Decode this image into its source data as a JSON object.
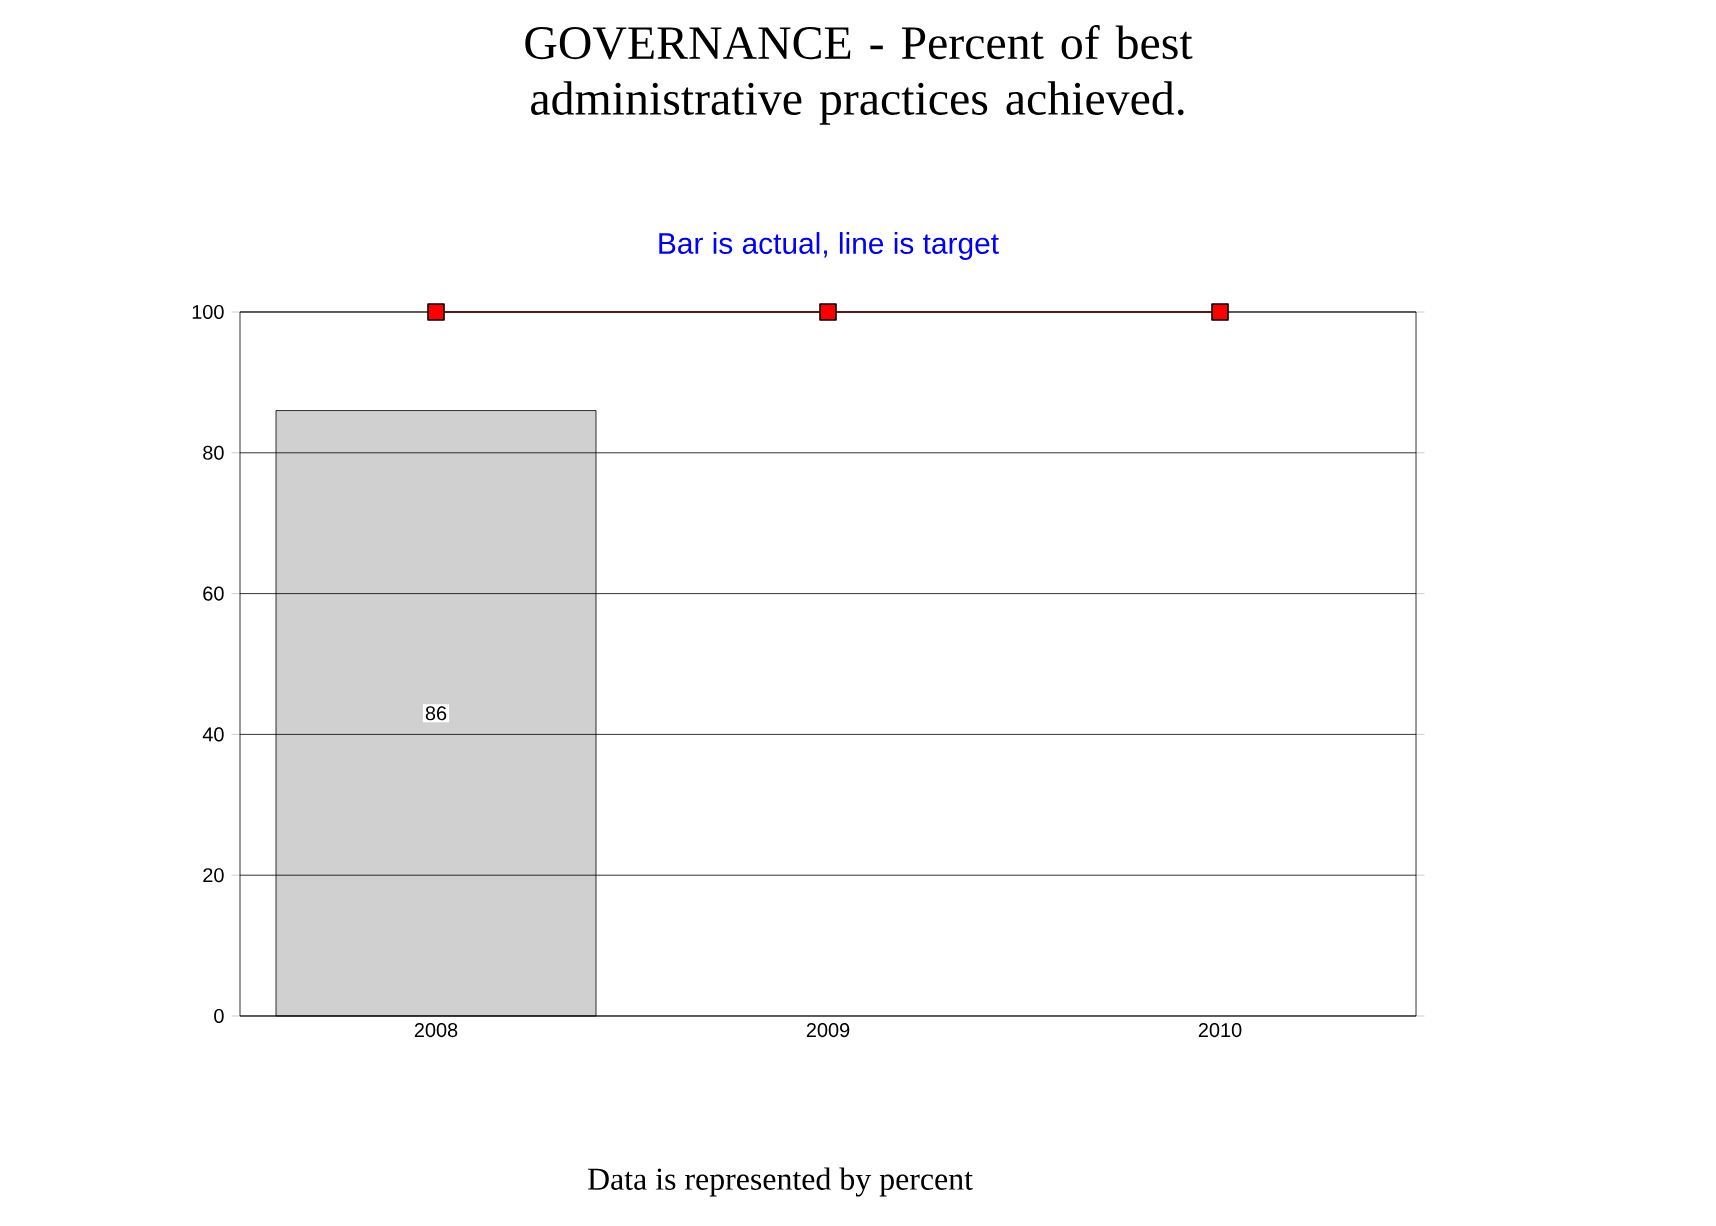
{
  "chart_data": {
    "type": "bar",
    "title": "GOVERNANCE - Percent of best administrative practices achieved.",
    "subtitle": "Bar is actual, line is target",
    "annotations": [
      "Data is represented by percent"
    ],
    "categories": [
      "2008",
      "2009",
      "2010"
    ],
    "series": [
      {
        "color": "#d0d0d0",
        "values": [
          86,
          null,
          null
        ],
        "value_labels": [
          "86",
          null,
          null
        ]
      },
      {
        "type": "line",
        "color": "#ff0000",
        "marker": "square",
        "values": [
          100,
          100,
          100
        ]
      }
    ],
    "ylim": [
      0,
      100
    ],
    "yticks": [
      0,
      20,
      40,
      60,
      80,
      100
    ],
    "grid": "y"
  }
}
